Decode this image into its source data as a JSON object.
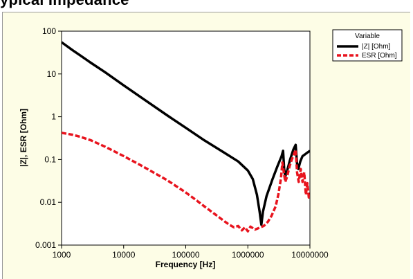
{
  "page": {
    "title_fragment": "ypical Impedance"
  },
  "chart_data": {
    "type": "line",
    "title": "",
    "xlabel": "Frequency [Hz]",
    "ylabel": "|Z|, ESR [Ohm]",
    "x_scale": "log",
    "y_scale": "log",
    "xlim": [
      1000,
      10000000
    ],
    "ylim": [
      0.001,
      100
    ],
    "x_ticks": [
      1000,
      10000,
      100000,
      1000000,
      10000000
    ],
    "x_tick_labels": [
      "1000",
      "10000",
      "100000",
      "1000000",
      "10000000"
    ],
    "y_ticks": [
      0.001,
      0.01,
      0.1,
      1,
      10,
      100
    ],
    "y_tick_labels": [
      "0.001",
      "0.01",
      "0.1",
      "1",
      "10",
      "100"
    ],
    "grid": false,
    "legend": {
      "placement": "top-right",
      "title": "Variable"
    },
    "series": [
      {
        "name": "|Z| [Ohm]",
        "color": "#000000",
        "style": "solid",
        "points": [
          [
            1000,
            55
          ],
          [
            1500,
            36
          ],
          [
            2000,
            27
          ],
          [
            3000,
            18
          ],
          [
            5000,
            11
          ],
          [
            10000,
            5.4
          ],
          [
            20000,
            2.7
          ],
          [
            50000,
            1.08
          ],
          [
            100000,
            0.55
          ],
          [
            200000,
            0.28
          ],
          [
            400000,
            0.15
          ],
          [
            700000,
            0.09
          ],
          [
            1000000,
            0.055
          ],
          [
            1200000,
            0.035
          ],
          [
            1400000,
            0.015
          ],
          [
            1550000,
            0.006
          ],
          [
            1650000,
            0.003
          ],
          [
            1750000,
            0.006
          ],
          [
            2000000,
            0.014
          ],
          [
            2500000,
            0.035
          ],
          [
            3000000,
            0.07
          ],
          [
            3500000,
            0.12
          ],
          [
            3700000,
            0.16
          ],
          [
            3850000,
            0.06
          ],
          [
            4000000,
            0.04
          ],
          [
            4300000,
            0.055
          ],
          [
            4800000,
            0.1
          ],
          [
            5400000,
            0.17
          ],
          [
            5900000,
            0.22
          ],
          [
            6200000,
            0.08
          ],
          [
            6500000,
            0.06
          ],
          [
            7000000,
            0.09
          ],
          [
            7600000,
            0.12
          ],
          [
            8200000,
            0.13
          ],
          [
            8800000,
            0.14
          ],
          [
            9400000,
            0.15
          ],
          [
            10000000,
            0.16
          ]
        ]
      },
      {
        "name": "ESR [Ohm]",
        "color": "#e8141e",
        "style": "dashed",
        "points": [
          [
            1000,
            0.42
          ],
          [
            1500,
            0.38
          ],
          [
            2000,
            0.34
          ],
          [
            3000,
            0.28
          ],
          [
            5000,
            0.2
          ],
          [
            10000,
            0.12
          ],
          [
            20000,
            0.07
          ],
          [
            50000,
            0.033
          ],
          [
            100000,
            0.017
          ],
          [
            150000,
            0.011
          ],
          [
            200000,
            0.008
          ],
          [
            300000,
            0.0052
          ],
          [
            400000,
            0.0038
          ],
          [
            500000,
            0.003
          ],
          [
            600000,
            0.0026
          ],
          [
            700000,
            0.0028
          ],
          [
            800000,
            0.0022
          ],
          [
            900000,
            0.0026
          ],
          [
            1000000,
            0.0021
          ],
          [
            1100000,
            0.0027
          ],
          [
            1300000,
            0.0023
          ],
          [
            1500000,
            0.0025
          ],
          [
            1800000,
            0.0028
          ],
          [
            2100000,
            0.0035
          ],
          [
            2400000,
            0.0048
          ],
          [
            2800000,
            0.008
          ],
          [
            3100000,
            0.015
          ],
          [
            3400000,
            0.035
          ],
          [
            3600000,
            0.085
          ],
          [
            3800000,
            0.05
          ],
          [
            4000000,
            0.03
          ],
          [
            4300000,
            0.04
          ],
          [
            4700000,
            0.07
          ],
          [
            5100000,
            0.1
          ],
          [
            5500000,
            0.13
          ],
          [
            5900000,
            0.17
          ],
          [
            6200000,
            0.05
          ],
          [
            6600000,
            0.03
          ],
          [
            7100000,
            0.06
          ],
          [
            7600000,
            0.03
          ],
          [
            8100000,
            0.05
          ],
          [
            8600000,
            0.015
          ],
          [
            9100000,
            0.028
          ],
          [
            9600000,
            0.013
          ],
          [
            10000000,
            0.015
          ]
        ]
      }
    ]
  }
}
